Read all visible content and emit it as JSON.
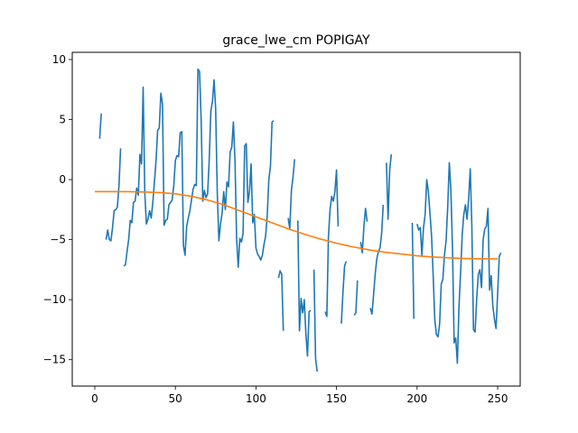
{
  "chart_data": {
    "type": "line",
    "title": "grace_lwe_cm POPIGAY",
    "xlabel": "",
    "ylabel": "",
    "xlim": [
      -14,
      264
    ],
    "ylim": [
      -17.2,
      10.6
    ],
    "xticks": [
      0,
      50,
      100,
      150,
      200,
      250
    ],
    "yticks": [
      -15,
      -10,
      -5,
      0,
      5,
      10
    ],
    "grid": false,
    "legend": "none",
    "series": [
      {
        "color": "#1f77b4",
        "segments": [
          [
            [
              3,
              3.4
            ],
            [
              4,
              5.5
            ]
          ],
          [
            [
              7,
              -5.0
            ],
            [
              8,
              -4.2
            ],
            [
              9,
              -5.0
            ],
            [
              10,
              -5.1
            ],
            [
              11,
              -4.0
            ],
            [
              12,
              -2.6
            ],
            [
              13,
              -2.5
            ],
            [
              14,
              -2.3
            ],
            [
              15,
              -0.5
            ],
            [
              16,
              2.6
            ]
          ],
          [
            [
              18,
              -7.2
            ],
            [
              19,
              -7.1
            ],
            [
              20,
              -6.0
            ],
            [
              21,
              -5.0
            ],
            [
              22,
              -3.4
            ],
            [
              23,
              -3.6
            ],
            [
              24,
              -1.9
            ],
            [
              25,
              -1.8
            ],
            [
              26,
              -0.7
            ],
            [
              27,
              -1.3
            ],
            [
              28,
              2.1
            ],
            [
              29,
              1.3
            ],
            [
              30,
              7.7
            ],
            [
              31,
              -1.0
            ],
            [
              32,
              -3.7
            ],
            [
              33,
              -3.3
            ],
            [
              34,
              -2.6
            ],
            [
              35,
              -3.2
            ],
            [
              36,
              -1.9
            ],
            [
              37,
              -0.2
            ],
            [
              38,
              1.6
            ],
            [
              39,
              4.1
            ],
            [
              40,
              4.3
            ],
            [
              41,
              7.2
            ],
            [
              42,
              6.3
            ],
            [
              43,
              -3.8
            ],
            [
              44,
              -3.4
            ],
            [
              45,
              -3.3
            ],
            [
              46,
              -2.1
            ],
            [
              47,
              -1.9
            ],
            [
              48,
              -1.7
            ],
            [
              49,
              -0.5
            ],
            [
              50,
              1.6
            ],
            [
              51,
              2.0
            ],
            [
              52,
              1.9
            ],
            [
              53,
              3.9
            ],
            [
              54,
              4.0
            ],
            [
              55,
              -5.5
            ],
            [
              56,
              -6.3
            ],
            [
              57,
              -3.9
            ],
            [
              58,
              -3.2
            ],
            [
              59,
              -2.6
            ],
            [
              60,
              -1.7
            ],
            [
              61,
              -0.8
            ],
            [
              62,
              -0.4
            ],
            [
              63,
              -0.5
            ],
            [
              64,
              9.2
            ],
            [
              65,
              9.0
            ],
            [
              66,
              5.0
            ],
            [
              67,
              -1.8
            ],
            [
              68,
              -0.9
            ],
            [
              69,
              -1.5
            ],
            [
              70,
              -1.2
            ],
            [
              71,
              1.6
            ],
            [
              72,
              5.7
            ],
            [
              73,
              6.5
            ],
            [
              74,
              8.3
            ],
            [
              75,
              5.9
            ],
            [
              76,
              -1.1
            ],
            [
              77,
              -5.1
            ],
            [
              78,
              -3.7
            ],
            [
              79,
              -2.8
            ],
            [
              80,
              -1.0
            ],
            [
              81,
              -2.5
            ],
            [
              82,
              -0.2
            ],
            [
              83,
              -0.6
            ],
            [
              84,
              2.3
            ],
            [
              85,
              2.7
            ],
            [
              86,
              4.8
            ],
            [
              87,
              1.6
            ],
            [
              88,
              -4.9
            ],
            [
              89,
              -7.3
            ],
            [
              90,
              -4.9
            ],
            [
              91,
              -5.2
            ],
            [
              92,
              -4.5
            ],
            [
              93,
              2.8
            ],
            [
              94,
              3.0
            ],
            [
              95,
              -1.9
            ],
            [
              96,
              -1.0
            ],
            [
              97,
              1.3
            ],
            [
              98,
              -3.6
            ],
            [
              99,
              -2.9
            ],
            [
              100,
              -5.7
            ],
            [
              101,
              -6.2
            ],
            [
              102,
              -6.4
            ],
            [
              103,
              -6.7
            ],
            [
              104,
              -6.3
            ],
            [
              105,
              -5.4
            ],
            [
              106,
              -4.7
            ],
            [
              107,
              -3.0
            ],
            [
              108,
              0.0
            ],
            [
              109,
              1.1
            ],
            [
              110,
              4.8
            ],
            [
              111,
              4.9
            ]
          ],
          [
            [
              114,
              -8.2
            ],
            [
              115,
              -7.6
            ],
            [
              116,
              -7.9
            ],
            [
              117,
              -12.6
            ]
          ],
          [
            [
              120,
              -3.2
            ],
            [
              121,
              -4.1
            ],
            [
              122,
              -0.9
            ],
            [
              123,
              0.2
            ],
            [
              124,
              1.7
            ]
          ],
          [
            [
              126,
              -3.4
            ],
            [
              127,
              -12.6
            ],
            [
              128,
              -9.9
            ],
            [
              129,
              -11.1
            ],
            [
              130,
              -10.0
            ],
            [
              131,
              -12.9
            ],
            [
              132,
              -14.7
            ],
            [
              133,
              -11.0
            ],
            [
              134,
              -10.9
            ]
          ],
          [
            [
              136,
              -7.5
            ],
            [
              137,
              -14.9
            ],
            [
              138,
              -16.0
            ]
          ],
          [
            [
              143,
              -11.0
            ],
            [
              144,
              -11.4
            ],
            [
              145,
              -4.7
            ],
            [
              146,
              -2.5
            ],
            [
              147,
              -1.4
            ],
            [
              148,
              -1.8
            ],
            [
              149,
              -1.0
            ],
            [
              150,
              0.8
            ],
            [
              151,
              -3.9
            ]
          ],
          [
            [
              153,
              -12.0
            ],
            [
              154,
              -9.4
            ],
            [
              155,
              -7.2
            ],
            [
              156,
              -6.8
            ]
          ],
          [
            [
              161,
              -11.3
            ],
            [
              162,
              -11.1
            ],
            [
              163,
              -8.4
            ]
          ],
          [
            [
              165,
              -5.2
            ],
            [
              166,
              -6.1
            ],
            [
              167,
              -3.9
            ],
            [
              168,
              -2.4
            ],
            [
              169,
              -3.5
            ]
          ],
          [
            [
              171,
              -10.7
            ],
            [
              172,
              -11.2
            ],
            [
              173,
              -9.6
            ],
            [
              174,
              -7.9
            ],
            [
              175,
              -6.6
            ],
            [
              176,
              -6.0
            ],
            [
              177,
              -5.7
            ],
            [
              178,
              -4.5
            ],
            [
              179,
              -2.1
            ]
          ],
          [
            [
              181,
              1.4
            ],
            [
              182,
              -3.3
            ],
            [
              183,
              0.8
            ],
            [
              184,
              2.1
            ]
          ],
          [
            [
              197,
              -3.6
            ],
            [
              198,
              -11.6
            ]
          ],
          [
            [
              200,
              -3.7
            ],
            [
              201,
              -4.2
            ],
            [
              202,
              -4.0
            ],
            [
              203,
              -6.3
            ],
            [
              204,
              -4.0
            ],
            [
              205,
              -2.9
            ],
            [
              206,
              0.0
            ],
            [
              207,
              -1.0
            ],
            [
              208,
              -2.8
            ],
            [
              209,
              -4.7
            ],
            [
              210,
              -8.0
            ],
            [
              211,
              -11.7
            ],
            [
              212,
              -12.9
            ],
            [
              213,
              -13.1
            ],
            [
              214,
              -12.0
            ],
            [
              215,
              -8.7
            ],
            [
              216,
              -8.3
            ],
            [
              217,
              -6.3
            ],
            [
              218,
              -5.1
            ],
            [
              219,
              -2.3
            ],
            [
              220,
              1.4
            ],
            [
              221,
              -0.9
            ],
            [
              222,
              -5.8
            ],
            [
              223,
              -13.6
            ],
            [
              224,
              -13.2
            ],
            [
              225,
              -15.3
            ],
            [
              226,
              -10.6
            ],
            [
              227,
              -7.8
            ],
            [
              228,
              -4.6
            ],
            [
              229,
              -2.9
            ],
            [
              230,
              -2.1
            ],
            [
              231,
              -3.3
            ],
            [
              232,
              -1.6
            ],
            [
              233,
              0.9
            ],
            [
              234,
              -3.9
            ],
            [
              235,
              -12.5
            ],
            [
              236,
              -12.7
            ],
            [
              237,
              -9.9
            ],
            [
              238,
              -7.9
            ],
            [
              239,
              -7.5
            ],
            [
              240,
              -9.0
            ],
            [
              241,
              -5.0
            ],
            [
              242,
              -4.1
            ],
            [
              243,
              -3.9
            ],
            [
              244,
              -2.4
            ],
            [
              245,
              -9.2
            ],
            [
              246,
              -8.0
            ],
            [
              247,
              -10.5
            ],
            [
              248,
              -11.6
            ],
            [
              249,
              -12.4
            ],
            [
              250,
              -9.5
            ],
            [
              251,
              -6.4
            ],
            [
              252,
              -6.1
            ]
          ]
        ]
      },
      {
        "color": "#ff7f0e",
        "segments": [
          [
            [
              0,
              -1.0
            ],
            [
              10,
              -1.0
            ],
            [
              20,
              -1.0
            ],
            [
              30,
              -1.03
            ],
            [
              40,
              -1.08
            ],
            [
              50,
              -1.18
            ],
            [
              60,
              -1.4
            ],
            [
              70,
              -1.7
            ],
            [
              80,
              -2.1
            ],
            [
              90,
              -2.6
            ],
            [
              100,
              -3.1
            ],
            [
              110,
              -3.6
            ],
            [
              120,
              -4.1
            ],
            [
              130,
              -4.55
            ],
            [
              140,
              -4.95
            ],
            [
              150,
              -5.3
            ],
            [
              160,
              -5.6
            ],
            [
              170,
              -5.85
            ],
            [
              180,
              -6.05
            ],
            [
              190,
              -6.2
            ],
            [
              200,
              -6.35
            ],
            [
              210,
              -6.45
            ],
            [
              220,
              -6.52
            ],
            [
              230,
              -6.57
            ],
            [
              240,
              -6.6
            ],
            [
              250,
              -6.6
            ]
          ]
        ]
      }
    ]
  }
}
